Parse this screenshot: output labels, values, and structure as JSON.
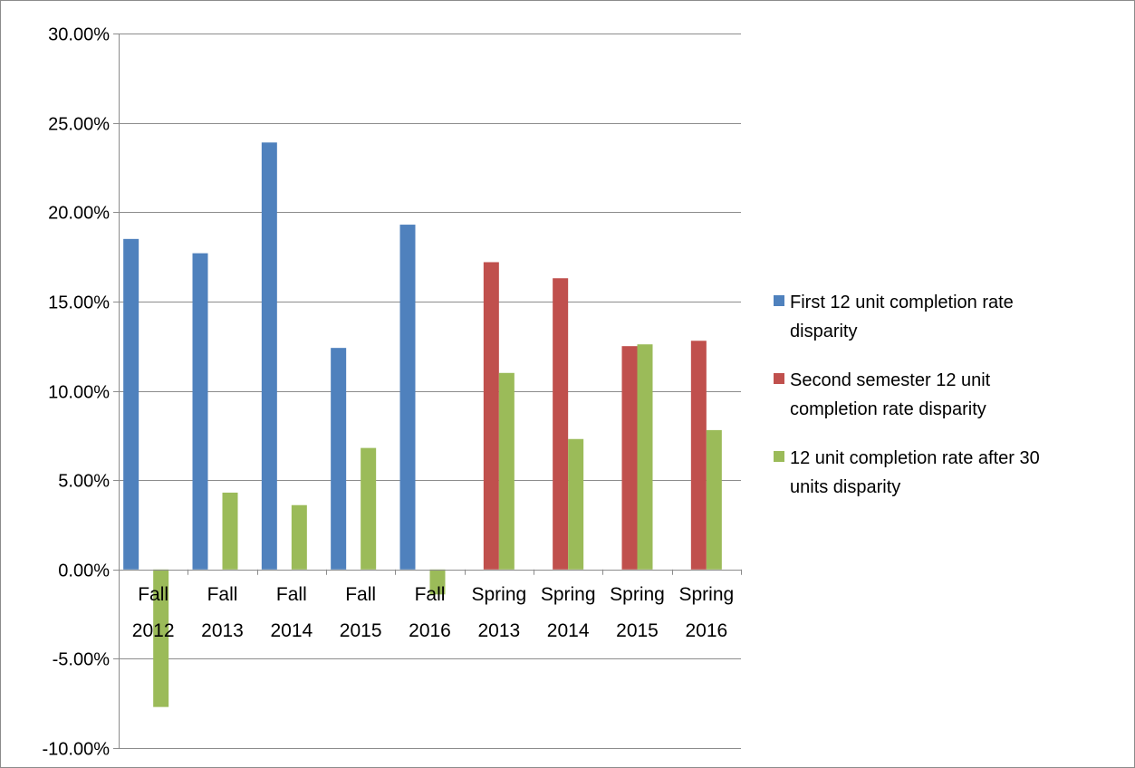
{
  "chart_data": {
    "type": "bar",
    "title": "",
    "xlabel": "",
    "ylabel": "",
    "ylim": [
      -0.1,
      0.3
    ],
    "y_tick_step": 0.05,
    "y_tick_labels": [
      "30.00%",
      "25.00%",
      "20.00%",
      "15.00%",
      "10.00%",
      "5.00%",
      "0.00%",
      "-5.00%",
      "-10.00%"
    ],
    "grid": true,
    "legend_position": "right",
    "categories": [
      {
        "line1": "Fall",
        "line2": "2012"
      },
      {
        "line1": "Fall",
        "line2": "2013"
      },
      {
        "line1": "Fall",
        "line2": "2014"
      },
      {
        "line1": "Fall",
        "line2": "2015"
      },
      {
        "line1": "Fall",
        "line2": "2016"
      },
      {
        "line1": "Spring",
        "line2": "2013"
      },
      {
        "line1": "Spring",
        "line2": "2014"
      },
      {
        "line1": "Spring",
        "line2": "2015"
      },
      {
        "line1": "Spring",
        "line2": "2016"
      }
    ],
    "series": [
      {
        "name": "First 12 unit completion rate disparity",
        "legend_lines": [
          "First 12 unit completion rate",
          "disparity"
        ],
        "color": "#4F81BD",
        "values": [
          0.185,
          0.177,
          0.239,
          0.124,
          0.193,
          null,
          null,
          null,
          null
        ]
      },
      {
        "name": "Second semester 12 unit completion rate disparity",
        "legend_lines": [
          "Second semester 12 unit",
          "completion rate disparity"
        ],
        "color": "#C0504D",
        "values": [
          null,
          null,
          null,
          null,
          null,
          0.172,
          0.163,
          0.125,
          0.128
        ]
      },
      {
        "name": "12 unit completion rate after 30 units disparity",
        "legend_lines": [
          "12 unit completion rate after 30",
          "units disparity"
        ],
        "color": "#9BBB59",
        "values": [
          -0.077,
          0.043,
          0.036,
          0.068,
          -0.014,
          0.11,
          0.073,
          0.126,
          0.078
        ]
      }
    ]
  }
}
